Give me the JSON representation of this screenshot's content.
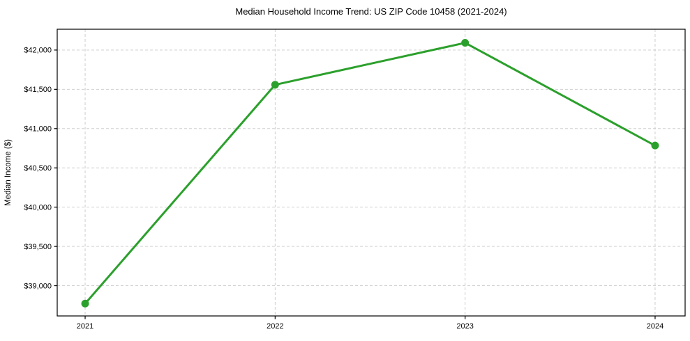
{
  "page": {
    "background": "#ffffff"
  },
  "chart_data": {
    "type": "line",
    "title": "Median Household Income Trend: US ZIP Code 10458 (2021-2024)",
    "xlabel": "",
    "ylabel": "Median Income ($)",
    "x": [
      2021,
      2022,
      2023,
      2024
    ],
    "series": [
      {
        "name": "Median Household Income",
        "values": [
          38772,
          41558,
          42092,
          40784
        ]
      }
    ],
    "xticks": [
      2021,
      2022,
      2023,
      2024
    ],
    "xtick_labels": [
      "2021",
      "2022",
      "2023",
      "2024"
    ],
    "yticks": [
      39000,
      39500,
      40000,
      40500,
      41000,
      41500,
      42000
    ],
    "ytick_labels": [
      "$39,000",
      "$39,500",
      "$40,000",
      "$40,500",
      "$41,000",
      "$41,500",
      "$42,000"
    ],
    "xlim": [
      2020.853,
      2024.158
    ],
    "ylim": [
      38615,
      42265
    ],
    "grid": true,
    "grid_style": "dashed",
    "legend": null,
    "colors": {
      "line": "#2ca02c",
      "marker": "#2ca02c",
      "grid": "#c8c8c8",
      "axis": "#000000",
      "text": "#000000",
      "background": "#ffffff"
    },
    "line_width": 3,
    "marker_radius": 5.5
  }
}
